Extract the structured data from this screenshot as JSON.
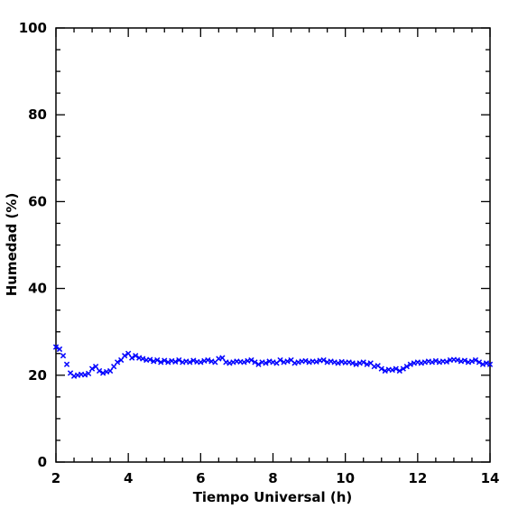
{
  "chart_data": {
    "type": "scatter",
    "xlabel": "Tiempo Universal (h)",
    "ylabel": "Humedad (%)",
    "xlim": [
      2,
      14
    ],
    "ylim": [
      0,
      100
    ],
    "x_ticks": [
      "2",
      "4",
      "6",
      "8",
      "10",
      "12",
      "14"
    ],
    "y_ticks": [
      "0",
      "20",
      "40",
      "60",
      "80",
      "100"
    ],
    "grid": false,
    "marker": "x",
    "marker_color": "#0000ff",
    "series": [
      {
        "x": [
          2.0,
          2.1,
          2.2,
          2.3,
          2.4,
          2.5,
          2.6,
          2.7,
          2.8,
          2.9,
          3.0,
          3.1,
          3.2,
          3.3,
          3.4,
          3.5,
          3.6,
          3.7,
          3.8,
          3.9,
          4.0,
          4.1,
          4.2,
          4.3,
          4.4,
          4.5,
          4.6,
          4.7,
          4.8,
          4.9,
          5.0,
          5.1,
          5.2,
          5.3,
          5.4,
          5.5,
          5.6,
          5.7,
          5.8,
          5.9,
          6.0,
          6.1,
          6.2,
          6.3,
          6.4,
          6.5,
          6.6,
          6.7,
          6.8,
          6.9,
          7.0,
          7.1,
          7.2,
          7.3,
          7.4,
          7.5,
          7.6,
          7.7,
          7.8,
          7.9,
          8.0,
          8.1,
          8.2,
          8.3,
          8.4,
          8.5,
          8.6,
          8.7,
          8.8,
          8.9,
          9.0,
          9.1,
          9.2,
          9.3,
          9.4,
          9.5,
          9.6,
          9.7,
          9.8,
          9.9,
          10.0,
          10.1,
          10.2,
          10.3,
          10.4,
          10.5,
          10.6,
          10.7,
          10.8,
          10.9,
          11.0,
          11.1,
          11.2,
          11.3,
          11.4,
          11.5,
          11.6,
          11.7,
          11.8,
          11.9,
          12.0,
          12.1,
          12.2,
          12.3,
          12.4,
          12.5,
          12.6,
          12.7,
          12.8,
          12.9,
          13.0,
          13.1,
          13.2,
          13.3,
          13.4,
          13.5,
          13.6,
          13.7,
          13.8,
          13.9,
          14.0
        ],
        "y": [
          26.5,
          26.0,
          24.5,
          22.5,
          20.5,
          19.8,
          20.0,
          20.2,
          20.1,
          20.4,
          21.5,
          22.0,
          21.0,
          20.5,
          20.8,
          21.0,
          22.0,
          23.0,
          23.5,
          24.5,
          25.0,
          24.0,
          24.5,
          24.0,
          23.8,
          23.5,
          23.6,
          23.2,
          23.5,
          23.0,
          23.4,
          23.0,
          23.3,
          23.1,
          23.5,
          23.0,
          23.2,
          23.0,
          23.4,
          23.1,
          23.0,
          23.3,
          23.5,
          23.2,
          23.0,
          23.8,
          24.0,
          23.0,
          22.8,
          23.0,
          23.2,
          23.1,
          23.0,
          23.3,
          23.5,
          23.0,
          22.5,
          23.0,
          22.8,
          23.2,
          23.0,
          22.8,
          23.5,
          23.0,
          23.2,
          23.5,
          22.8,
          23.0,
          23.2,
          23.3,
          23.0,
          23.2,
          23.1,
          23.4,
          23.5,
          23.0,
          23.2,
          23.0,
          22.8,
          23.1,
          22.9,
          23.0,
          22.8,
          22.5,
          22.8,
          23.0,
          22.5,
          22.8,
          22.0,
          22.2,
          21.5,
          21.0,
          21.3,
          21.2,
          21.5,
          21.0,
          21.5,
          22.0,
          22.5,
          22.8,
          23.0,
          22.8,
          23.0,
          23.2,
          23.0,
          23.3,
          23.0,
          23.2,
          23.1,
          23.5,
          23.6,
          23.5,
          23.2,
          23.4,
          23.0,
          23.2,
          23.5,
          23.0,
          22.5,
          22.8,
          22.5
        ]
      }
    ]
  }
}
